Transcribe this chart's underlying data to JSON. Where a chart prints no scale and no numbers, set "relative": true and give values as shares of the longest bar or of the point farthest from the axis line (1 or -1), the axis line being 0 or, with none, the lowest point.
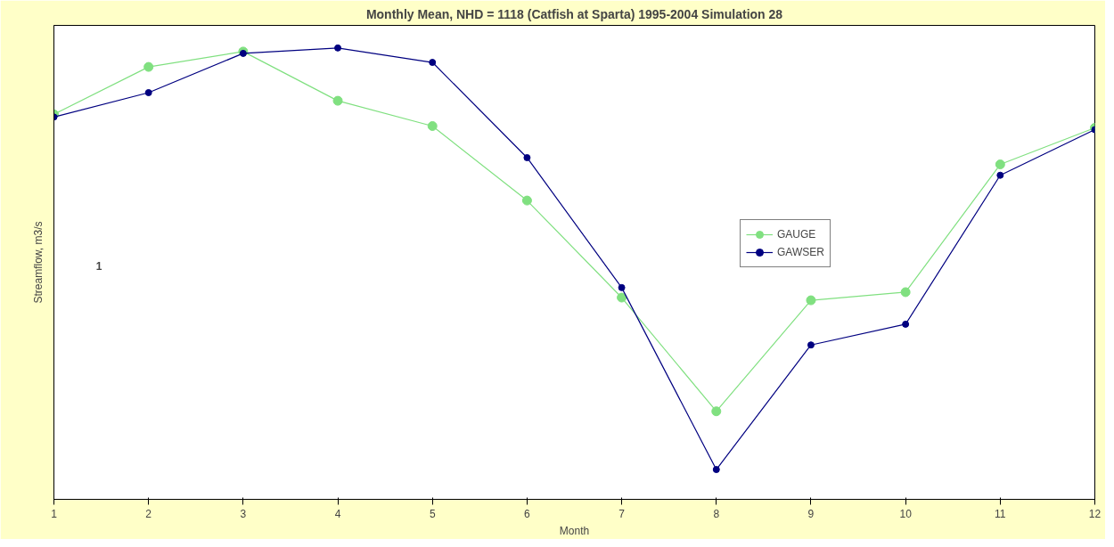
{
  "chart_data": {
    "type": "line",
    "title": "Monthly Mean, NHD = 1118 (Catfish at Sparta) 1995-2004 Simulation 28",
    "xlabel": "Month",
    "ylabel": "Streamflow, m3/s",
    "x": [
      1,
      2,
      3,
      4,
      5,
      6,
      7,
      8,
      9,
      10,
      11,
      12
    ],
    "relative": true,
    "series": [
      {
        "name": "GAUGE",
        "color": "#80e080",
        "values": [
          0.853,
          0.958,
          0.992,
          0.883,
          0.827,
          0.662,
          0.447,
          0.195,
          0.441,
          0.459,
          0.742,
          0.823
        ]
      },
      {
        "name": "GAWSER",
        "color": "#000080",
        "values": [
          0.847,
          0.901,
          0.988,
          1,
          0.968,
          0.757,
          0.469,
          0.066,
          0.342,
          0.388,
          0.718,
          0.819
        ]
      }
    ],
    "xlim": [
      1,
      12
    ],
    "xticks": [
      1,
      2,
      3,
      4,
      5,
      6,
      7,
      8,
      9,
      10,
      11,
      12
    ],
    "annotations": [
      "1"
    ],
    "legend": "right",
    "marker": "circle",
    "line_style": "solid"
  }
}
